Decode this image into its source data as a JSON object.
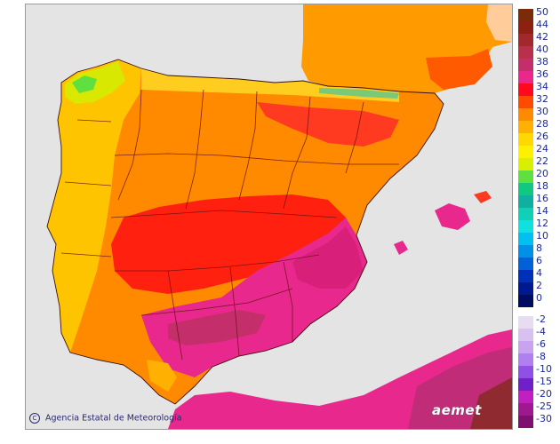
{
  "map": {
    "credit_text": "Agencia Estatal de Meteorología",
    "credit_symbol": "C",
    "logo_text": "aemet",
    "land_base_color": "#ff8a00",
    "sea_color": "#e4e4e4"
  },
  "legend": {
    "positive": [
      {
        "label": "50",
        "color": "#7a2c0a"
      },
      {
        "label": "44",
        "color": "#8e2010"
      },
      {
        "label": "42",
        "color": "#a2282c"
      },
      {
        "label": "40",
        "color": "#b8304a"
      },
      {
        "label": "38",
        "color": "#c42e6a"
      },
      {
        "label": "36",
        "color": "#e8288c"
      },
      {
        "label": "34",
        "color": "#ff0820"
      },
      {
        "label": "32",
        "color": "#ff4a00"
      },
      {
        "label": "30",
        "color": "#ff8a00"
      },
      {
        "label": "28",
        "color": "#ffb000"
      },
      {
        "label": "26",
        "color": "#ffd800"
      },
      {
        "label": "24",
        "color": "#fff000"
      },
      {
        "label": "22",
        "color": "#d8f000"
      },
      {
        "label": "20",
        "color": "#60e040"
      },
      {
        "label": "18",
        "color": "#10c880"
      },
      {
        "label": "16",
        "color": "#10b0a0"
      },
      {
        "label": "14",
        "color": "#10d0b8"
      },
      {
        "label": "12",
        "color": "#10e0e0"
      },
      {
        "label": "10",
        "color": "#00c0f0"
      },
      {
        "label": "8",
        "color": "#0090e8"
      },
      {
        "label": "6",
        "color": "#0060d8"
      },
      {
        "label": "4",
        "color": "#0030b8"
      },
      {
        "label": "2",
        "color": "#001890"
      },
      {
        "label": "0",
        "color": "#000c60"
      }
    ],
    "negative": [
      {
        "label": "-2",
        "color": "#e8dcf0"
      },
      {
        "label": "-4",
        "color": "#d8c0f0"
      },
      {
        "label": "-6",
        "color": "#c8a4f0"
      },
      {
        "label": "-8",
        "color": "#b080f0"
      },
      {
        "label": "-10",
        "color": "#9050e8"
      },
      {
        "label": "-15",
        "color": "#7020c8"
      },
      {
        "label": "-20",
        "color": "#c020c0"
      },
      {
        "label": "-25",
        "color": "#a01890"
      },
      {
        "label": "-30",
        "color": "#801070"
      }
    ]
  }
}
